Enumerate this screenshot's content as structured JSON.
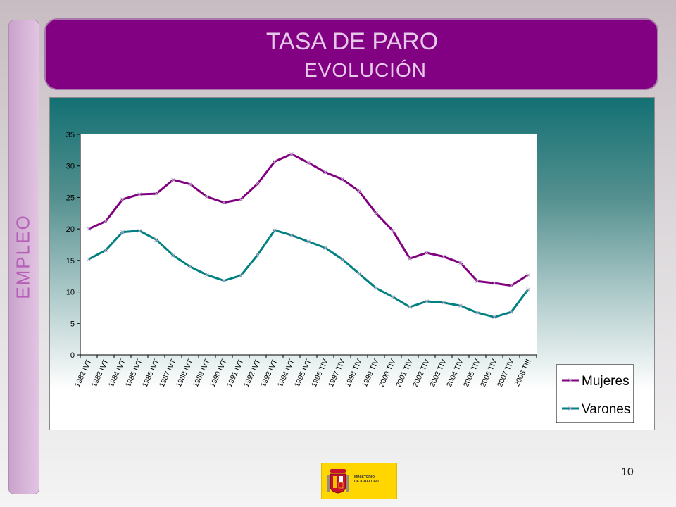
{
  "sidebar": {
    "label": "EMPLEO"
  },
  "header": {
    "title": "TASA DE PARO",
    "subtitle": "EVOLUCIÓN"
  },
  "footer": {
    "page_number": "10",
    "logo_text_line1": "MINISTERIO",
    "logo_text_line2": "DE IGUALDAD"
  },
  "colors": {
    "mujeres": "#800080",
    "varones": "#008080",
    "title_bg": "#820082"
  },
  "chart_data": {
    "type": "line",
    "categories": [
      "1982 IVT",
      "1983 IVT",
      "1984 IVT",
      "1985 IVT",
      "1986 IVT",
      "1987 IVT",
      "1988 IVT",
      "1989 IVT",
      "1990 IVT",
      "1991 IVT",
      "1992 IVT",
      "1993 IVT",
      "1994 IVT",
      "1995 IVT",
      "1996 TIV",
      "1997 TIV",
      "1998 TIV",
      "1999 TIV",
      "2000 TIV",
      "2001 TIV",
      "2002 TIV",
      "2003 TIV",
      "2004 TIV",
      "2005 TIV",
      "2006 TIV",
      "2007 TIV",
      "2008 TIII"
    ],
    "series": [
      {
        "name": "Mujeres",
        "color": "#800080",
        "values": [
          20.0,
          21.2,
          24.7,
          25.5,
          25.6,
          27.8,
          27.1,
          25.1,
          24.2,
          24.7,
          27.2,
          30.7,
          31.9,
          30.5,
          29.0,
          27.9,
          26.0,
          22.5,
          19.7,
          15.3,
          16.2,
          15.6,
          14.6,
          11.7,
          11.4,
          11.0,
          12.7
        ]
      },
      {
        "name": "Varones",
        "color": "#008080",
        "values": [
          15.2,
          16.6,
          19.5,
          19.7,
          18.3,
          15.8,
          14.0,
          12.7,
          11.8,
          12.6,
          15.9,
          19.8,
          19.0,
          18.0,
          17.0,
          15.2,
          12.9,
          10.6,
          9.2,
          7.6,
          8.5,
          8.3,
          7.8,
          6.7,
          6.0,
          6.8,
          10.4
        ]
      }
    ],
    "yticks": [
      "0",
      "5",
      "10",
      "15",
      "20",
      "25",
      "30",
      "35"
    ],
    "ylim": [
      0,
      35
    ],
    "legend": "bottom-right",
    "grid": false
  }
}
